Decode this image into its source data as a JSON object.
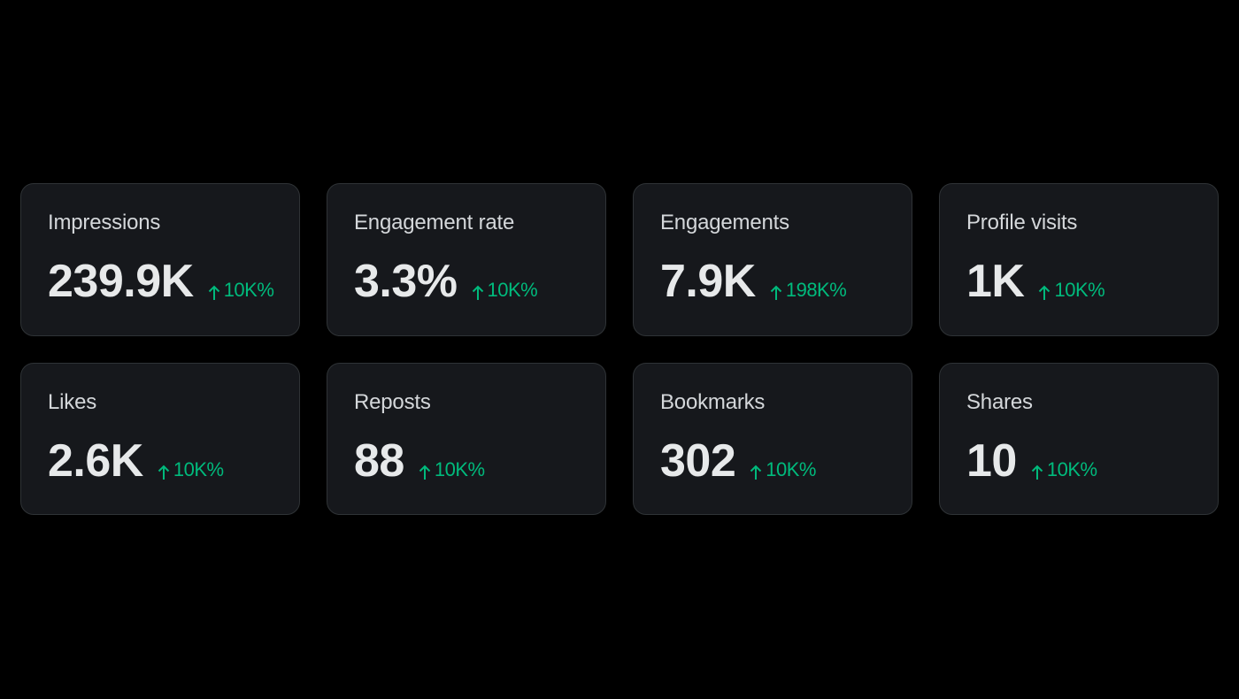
{
  "cards": [
    {
      "label": "Impressions",
      "value": "239.9K",
      "change": "10K%"
    },
    {
      "label": "Engagement rate",
      "value": "3.3%",
      "change": "10K%"
    },
    {
      "label": "Engagements",
      "value": "7.9K",
      "change": "198K%"
    },
    {
      "label": "Profile visits",
      "value": "1K",
      "change": "10K%"
    },
    {
      "label": "Likes",
      "value": "2.6K",
      "change": "10K%"
    },
    {
      "label": "Reposts",
      "value": "88",
      "change": "10K%"
    },
    {
      "label": "Bookmarks",
      "value": "302",
      "change": "10K%"
    },
    {
      "label": "Shares",
      "value": "10",
      "change": "10K%"
    }
  ]
}
